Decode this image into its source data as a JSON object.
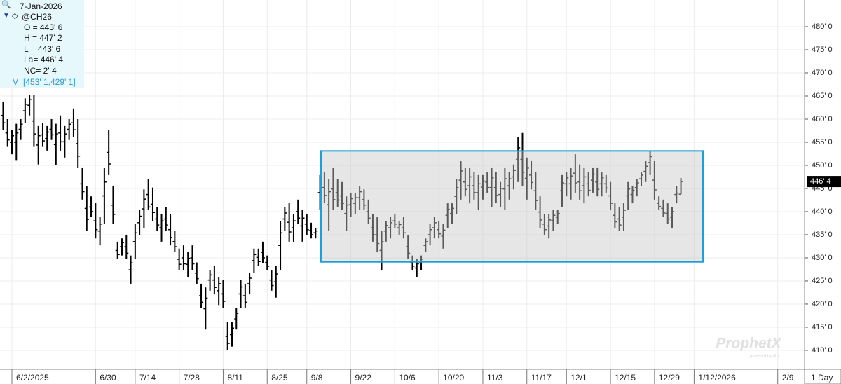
{
  "chart_data": {
    "type": "ohlc",
    "interval": "1 Day",
    "watermark": "ProphetX",
    "watermark_sub": "powered by dtn",
    "info": {
      "date": "7-Jan-2026",
      "lines": [
        "O = 443' 6",
        "H = 447' 2",
        "L = 443' 6",
        "La= 446' 4",
        "NC= 2' 4"
      ],
      "box_label": "V=[453' 1,429' 1]"
    },
    "box": {
      "high": 453.125,
      "low": 429.125,
      "color": "#1ba1d8"
    },
    "last_price": {
      "value": 446.5,
      "label": "446' 4"
    },
    "grid": true,
    "ylim": [
      405.9,
      485.76
    ],
    "yticks": [
      {
        "value": 410,
        "label": "410' 0"
      },
      {
        "value": 415,
        "label": "415' 0"
      },
      {
        "value": 420,
        "label": "420' 0"
      },
      {
        "value": 425,
        "label": "425' 0"
      },
      {
        "value": 430,
        "label": "430' 0"
      },
      {
        "value": 435,
        "label": "435' 0"
      },
      {
        "value": 440,
        "label": "440' 0"
      },
      {
        "value": 445,
        "label": "445' 0"
      },
      {
        "value": 450,
        "label": "450' 0"
      },
      {
        "value": 455,
        "label": "455' 0"
      },
      {
        "value": 460,
        "label": "460' 0"
      },
      {
        "value": 465,
        "label": "465' 0"
      },
      {
        "value": 470,
        "label": "470' 0"
      },
      {
        "value": 475,
        "label": "475' 0"
      },
      {
        "value": 480,
        "label": "480' 0"
      }
    ],
    "categories": [
      null,
      null,
      "6/2/2025",
      null,
      null,
      null,
      null,
      null,
      null,
      null,
      null,
      null,
      null,
      null,
      null,
      null,
      null,
      null,
      null,
      null,
      null,
      "6/30",
      null,
      null,
      null,
      null,
      null,
      null,
      null,
      null,
      "7/14",
      null,
      null,
      null,
      null,
      null,
      null,
      null,
      null,
      null,
      "7/28",
      null,
      null,
      null,
      null,
      null,
      null,
      null,
      null,
      null,
      "8/11",
      null,
      null,
      null,
      null,
      null,
      null,
      null,
      null,
      null,
      "8/25",
      null,
      null,
      null,
      null,
      null,
      null,
      null,
      null,
      "9/8",
      null,
      null,
      null,
      null,
      null,
      null,
      null,
      null,
      null,
      "9/22",
      null,
      null,
      null,
      null,
      null,
      null,
      null,
      null,
      null,
      "10/6",
      null,
      null,
      null,
      null,
      null,
      null,
      null,
      null,
      null,
      "10/20",
      null,
      null,
      null,
      null,
      null,
      null,
      null,
      null,
      null,
      "11/3",
      null,
      null,
      null,
      null,
      null,
      null,
      null,
      null,
      null,
      "11/17",
      null,
      null,
      null,
      null,
      null,
      null,
      null,
      null,
      "12/1",
      null,
      null,
      null,
      null,
      null,
      null,
      null,
      null,
      null,
      "12/15",
      null,
      null,
      null,
      null,
      null,
      null,
      null,
      null,
      null,
      "12/29",
      null,
      null,
      null,
      null,
      null,
      null,
      null,
      null,
      "1/12/2026",
      null,
      null,
      null,
      null,
      null,
      null,
      null,
      null,
      null,
      null,
      null,
      null,
      null,
      null,
      null,
      null,
      null,
      null,
      "2/9",
      null,
      null,
      null,
      null,
      null,
      null
    ],
    "series": [
      {
        "name": "@CH26",
        "color": "#000000",
        "open": [
          460.8,
          457.0,
          455.0,
          455.0,
          457.8,
          461.8,
          463.0,
          459.6,
          454.4,
          456.6,
          455.8,
          457.8,
          454.5,
          457.0,
          455.1,
          457.8,
          459.2,
          454.7,
          446.0,
          440.7,
          441.0,
          438.0,
          435.8,
          443.4,
          452.8,
          441.4,
          431.6,
          432.4,
          432.4,
          427.4,
          433.5,
          437.6,
          440.6,
          443.7,
          441.6,
          438.4,
          436.5,
          438.4,
          436.1,
          433.5,
          429.7,
          430.0,
          428.6,
          430.0,
          426.7,
          421.8,
          419.0,
          425.2,
          425.2,
          422.9,
          422.2,
          413.0,
          413.4,
          416.8,
          422.2,
          421.8,
          424.4,
          429.4,
          430.1,
          431.2,
          429.0,
          425.2,
          424.8,
          432.7,
          438.4,
          437.7,
          436.5,
          440.0,
          436.9,
          437.3,
          435.9,
          435.4,
          444.1,
          445.2,
          441.5,
          444.9,
          444.1,
          443.4,
          439.6,
          441.5,
          441.8,
          443.0,
          442.6,
          440.0,
          436.5,
          435.0,
          431.6,
          435.8,
          436.5,
          438.0,
          436.5,
          436.5,
          432.4,
          429.0,
          427.8,
          429.0,
          432.7,
          435.0,
          436.5,
          436.1,
          434.7,
          439.2,
          439.6,
          443.3,
          446.8,
          446.4,
          445.6,
          445.6,
          444.1,
          445.3,
          446.4,
          445.2,
          445.2,
          443.7,
          444.9,
          445.6,
          447.5,
          451.3,
          451.3,
          447.2,
          447.9,
          444.5,
          439.9,
          437.3,
          436.9,
          438.1,
          438.8,
          444.5,
          446.0,
          446.0,
          448.3,
          446.4,
          445.6,
          446.0,
          446.8,
          446.4,
          446.0,
          446.0,
          443.4,
          439.2,
          438.4,
          438.8,
          443.4,
          443.7,
          445.2,
          447.1,
          448.7,
          450.6,
          446.8,
          441.8,
          440.7,
          439.6,
          438.8,
          443.7,
          443.75,
          null,
          null,
          null,
          null,
          null,
          null,
          null,
          null,
          null,
          null,
          null,
          null,
          null,
          null,
          null,
          null,
          null,
          null,
          null,
          null,
          null,
          null,
          null,
          null,
          null,
          null,
          null,
          null
        ],
        "high": [
          463.8,
          460,
          457.7,
          459,
          460,
          464.5,
          465.3,
          465.3,
          458.5,
          459.2,
          458.5,
          460,
          459,
          460.8,
          458.5,
          460,
          462.3,
          460,
          449.4,
          445.6,
          443.3,
          441.8,
          438.8,
          449.4,
          457.7,
          445.6,
          433.5,
          434.2,
          435,
          430.5,
          437.3,
          440.3,
          444.8,
          447.1,
          445.2,
          441,
          439.5,
          441,
          439.5,
          435.8,
          432,
          432.7,
          431.2,
          432.7,
          429,
          424.4,
          423.6,
          427.4,
          428.2,
          425.9,
          425.2,
          416.1,
          416.1,
          419.1,
          425.2,
          424.4,
          426.7,
          432,
          432,
          433.5,
          430.5,
          427.4,
          428.2,
          438,
          441,
          441.8,
          439.5,
          442.6,
          440.3,
          439.5,
          437.6,
          436.5,
          447.9,
          448.6,
          447.1,
          449.4,
          447.1,
          446.4,
          443.3,
          444.1,
          444.1,
          445.6,
          444.8,
          442.6,
          439.5,
          438.8,
          435.8,
          438,
          438.8,
          439.5,
          438,
          438.8,
          435,
          430.5,
          429.7,
          430.5,
          434.2,
          437.3,
          438.8,
          438,
          437.3,
          441.8,
          441.8,
          447.1,
          450.9,
          449.4,
          449.4,
          448.6,
          447.9,
          447.9,
          448.6,
          449.4,
          448.6,
          446.4,
          449.4,
          448.6,
          450.2,
          456.2,
          457,
          451.7,
          450.9,
          448.6,
          443.3,
          439.5,
          439.5,
          440.3,
          440.3,
          447.9,
          448.6,
          449.4,
          452.4,
          450.2,
          449.4,
          448.6,
          449.4,
          449.4,
          448.6,
          447.9,
          446.4,
          441.8,
          441,
          441.8,
          446.4,
          445.6,
          447.1,
          448.6,
          450.9,
          453.2,
          450.9,
          443.3,
          442.6,
          441.8,
          441,
          445.6,
          447.25,
          null,
          null,
          null,
          null,
          null,
          null,
          null,
          null,
          null,
          null,
          null,
          null,
          null,
          null,
          null,
          null,
          null,
          null,
          null,
          null,
          null,
          null,
          null,
          null,
          null,
          null,
          null,
          null
        ],
        "low": [
          457.7,
          454,
          452.4,
          451,
          455.5,
          459.2,
          460.8,
          454,
          450.2,
          454,
          453.2,
          455.5,
          450,
          453.2,
          451.7,
          455.5,
          456.2,
          449.4,
          442.6,
          435.8,
          438.8,
          434.2,
          432.7,
          437.3,
          447.9,
          437.3,
          429.7,
          430.5,
          429.7,
          424.4,
          429.7,
          435,
          436.5,
          440.3,
          438,
          435.8,
          433.5,
          435.8,
          432.7,
          431.2,
          427.4,
          427.4,
          425.9,
          427.4,
          424.4,
          419.1,
          414.5,
          422.9,
          422.1,
          419.8,
          419.1,
          410,
          410.8,
          414.5,
          419.1,
          419.1,
          422.1,
          426.7,
          428.2,
          428.9,
          427.4,
          422.9,
          421.4,
          427.4,
          435.8,
          433.5,
          433.5,
          437.3,
          433.5,
          435,
          434.2,
          434.2,
          440.3,
          441.8,
          435.8,
          440.3,
          441,
          440.3,
          435.8,
          438.8,
          439.5,
          440.3,
          440.3,
          437.3,
          433.5,
          431.2,
          427.4,
          433.5,
          434.2,
          436.5,
          435,
          434.2,
          429.7,
          427.4,
          425.9,
          427.4,
          431.2,
          432.7,
          434.2,
          434.2,
          432,
          436.5,
          437.3,
          439.5,
          442.6,
          443.3,
          441.8,
          442.6,
          440.3,
          442.6,
          444.1,
          441,
          441.8,
          441,
          440.3,
          442.6,
          444.8,
          446.4,
          445.6,
          442.6,
          444.8,
          440.3,
          436.5,
          435,
          434.2,
          435.8,
          437.3,
          441,
          443.3,
          442.6,
          444.1,
          442.6,
          441.8,
          443.3,
          444.1,
          443.3,
          443.3,
          444.1,
          440.3,
          436.5,
          435.8,
          435.8,
          440.3,
          441.8,
          443.3,
          445.6,
          446.4,
          447.9,
          442.6,
          440.3,
          438.8,
          437.3,
          436.5,
          441.8,
          443.75,
          null,
          null,
          null,
          null,
          null,
          null,
          null,
          null,
          null,
          null,
          null,
          null,
          null,
          null,
          null,
          null,
          null,
          null,
          null,
          null,
          null,
          null,
          null,
          null,
          null,
          null,
          null,
          null
        ],
        "close": [
          459.2,
          455.5,
          456.4,
          457.0,
          458.9,
          463.2,
          464.2,
          456.8,
          456.4,
          455.3,
          457.2,
          456.6,
          456.8,
          455.1,
          456.8,
          458.9,
          457.7,
          452.0,
          444.3,
          438.3,
          440.0,
          436.1,
          437.3,
          446.4,
          450.3,
          439.4,
          430.7,
          433.3,
          431.0,
          428.9,
          435.4,
          439.0,
          442.7,
          441.0,
          439.8,
          437.1,
          438.0,
          437.1,
          434.4,
          432.4,
          428.6,
          428.7,
          429.9,
          428.7,
          425.5,
          420.4,
          421.3,
          426.3,
          423.6,
          424.4,
          420.6,
          411.5,
          414.8,
          418.0,
          423.7,
          420.4,
          425.6,
          430.7,
          429.2,
          430.0,
          428.2,
          424.0,
          426.5,
          435.4,
          439.7,
          435.6,
          438.0,
          438.6,
          438.6,
          436.1,
          435.0,
          435.8,
          446.0,
          443.5,
          444.3,
          442.6,
          442.5,
          441.8,
          441.4,
          442.8,
          443.0,
          444.3,
          441.4,
          438.6,
          435.0,
          433.1,
          433.5,
          437.0,
          437.6,
          437.3,
          437.2,
          435.4,
          431.0,
          428.2,
          428.7,
          429.7,
          433.5,
          436.1,
          437.6,
          435.2,
          436.0,
          440.5,
          440.7,
          445.2,
          448.8,
          444.8,
          447.5,
          444.1,
          446.0,
          446.6,
          445.2,
          447.3,
          443.5,
          445.0,
          447.1,
          447.1,
          448.9,
          453.8,
          448.5,
          449.4,
          446.3,
          442.4,
          438.2,
          436.1,
          438.2,
          439.2,
          439.6,
          446.2,
          447.3,
          447.7,
          446.2,
          444.5,
          447.5,
          444.6,
          448.1,
          444.8,
          447.3,
          445.1,
          441.8,
          437.8,
          437.1,
          440.3,
          444.9,
          444.6,
          446.2,
          447.9,
          449.8,
          451.9,
          444.7,
          441.1,
          439.7,
          438.4,
          440.0,
          444.0,
          446.5,
          null,
          null,
          null,
          null,
          null,
          null,
          null,
          null,
          null,
          null,
          null,
          null,
          null,
          null,
          null,
          null,
          null,
          null,
          null,
          null,
          null,
          null,
          null,
          null,
          null,
          null,
          null,
          null
        ]
      }
    ]
  }
}
